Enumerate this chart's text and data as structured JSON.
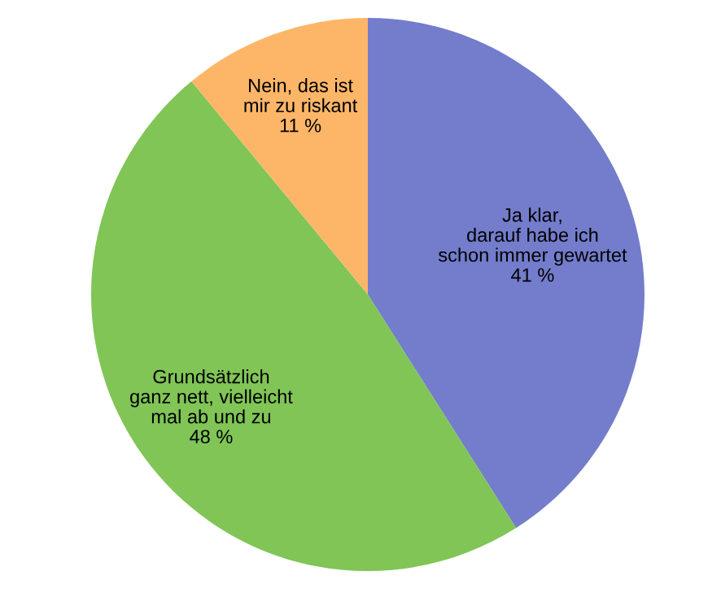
{
  "chart_data": {
    "type": "pie",
    "categories": [
      "Ja klar,\ndarauf habe ich\nschon immer gewartet",
      "Grundsätzlich\nganz nett, vielleicht\nmal ab und zu",
      "Nein, das ist\nmir zu riskant"
    ],
    "values": [
      41,
      48,
      11
    ],
    "value_labels": [
      "41 %",
      "48 %",
      "11 %"
    ],
    "colors": [
      "#737dcb",
      "#80c556",
      "#fdb668"
    ],
    "legend": false
  }
}
